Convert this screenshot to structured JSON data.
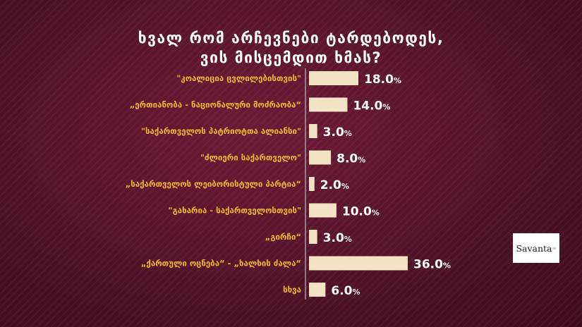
{
  "chart_data": {
    "type": "bar",
    "orientation": "horizontal",
    "title_lines": [
      "ხვალ რომ არჩევნები ტარდებოდეს,",
      "ვის მისცემდით ხმას?"
    ],
    "categories": [
      "\"კოალიცია ცვლილებისთვის\"",
      "„ერთიანობა - ნაციონალური მოძრაობა“",
      "\"საქართველოს პატრიოტთა ალიანსი\"",
      "\"ძლიერი საქართველო\"",
      "„საქართველოს ლეიბორისტული პარტია“",
      "\"გახარია - საქართველოსთვის\"",
      "„გირჩი“",
      "„ქართული ოცნება“ - „ხალხის ძალა“",
      "სხვა"
    ],
    "values": [
      18.0,
      14.0,
      3.0,
      8.0,
      2.0,
      10.0,
      3.0,
      36.0,
      6.0
    ],
    "value_labels": [
      "18.0",
      "14.0",
      "3.0",
      "8.0",
      "2.0",
      "10.0",
      "3.0",
      "36.0",
      "6.0"
    ],
    "unit": "%",
    "xlim": [
      0,
      36.0
    ],
    "grid": false,
    "legend": "none",
    "colors": {
      "background": "#4e1227",
      "bar": "#f3e2c3",
      "category_text": "#f2b82e",
      "value_text": "#ffffff",
      "axis": "#a89aa0"
    }
  },
  "logo": {
    "text": "Savanta",
    "mark": "≡"
  }
}
